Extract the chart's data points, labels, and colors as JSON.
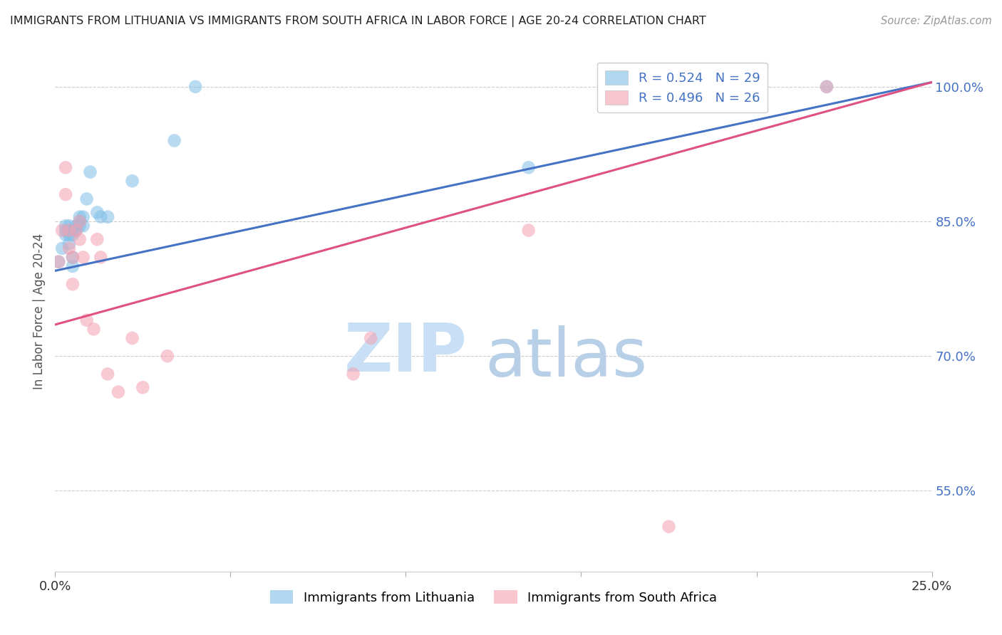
{
  "title": "IMMIGRANTS FROM LITHUANIA VS IMMIGRANTS FROM SOUTH AFRICA IN LABOR FORCE | AGE 20-24 CORRELATION CHART",
  "source": "Source: ZipAtlas.com",
  "ylabel": "In Labor Force | Age 20-24",
  "xlim": [
    0.0,
    0.25
  ],
  "ylim": [
    0.46,
    1.04
  ],
  "yticks": [
    0.55,
    0.7,
    0.85,
    1.0
  ],
  "ytick_labels": [
    "55.0%",
    "70.0%",
    "85.0%",
    "100.0%"
  ],
  "xticks": [
    0.0,
    0.05,
    0.1,
    0.15,
    0.2,
    0.25
  ],
  "watermark_zip": "ZIP",
  "watermark_atlas": "atlas",
  "watermark_zip_color": "#c8dff5",
  "watermark_atlas_color": "#b8cfe8",
  "blue_color": "#7fbfe8",
  "pink_color": "#f4a0b0",
  "blue_line_color": "#4472c4",
  "pink_line_color": "#e05080",
  "title_color": "#222222",
  "axis_label_color": "#555555",
  "right_tick_color": "#4472c4",
  "grid_color": "#cccccc",
  "legend_r1": "R = 0.524",
  "legend_n1": "N = 29",
  "legend_r2": "R = 0.496",
  "legend_n2": "N = 26",
  "legend_r1_color": "#4472c4",
  "legend_n1_color": "#e05080",
  "legend_r2_color": "#4472c4",
  "legend_n2_color": "#e05080",
  "blue_regression": [
    0.795,
    1.005
  ],
  "pink_regression": [
    0.735,
    1.005
  ],
  "lithuania_x": [
    0.001,
    0.002,
    0.003,
    0.003,
    0.003,
    0.004,
    0.004,
    0.004,
    0.005,
    0.005,
    0.005,
    0.005,
    0.006,
    0.006,
    0.007,
    0.007,
    0.007,
    0.008,
    0.008,
    0.009,
    0.01,
    0.012,
    0.013,
    0.015,
    0.022,
    0.034,
    0.04,
    0.135,
    0.22
  ],
  "lithuania_y": [
    0.805,
    0.82,
    0.84,
    0.845,
    0.835,
    0.825,
    0.835,
    0.845,
    0.835,
    0.84,
    0.8,
    0.81,
    0.84,
    0.845,
    0.85,
    0.855,
    0.845,
    0.855,
    0.845,
    0.875,
    0.905,
    0.86,
    0.855,
    0.855,
    0.895,
    0.94,
    1.0,
    0.91,
    1.0
  ],
  "southafrica_x": [
    0.001,
    0.002,
    0.003,
    0.003,
    0.004,
    0.004,
    0.005,
    0.005,
    0.006,
    0.007,
    0.007,
    0.008,
    0.009,
    0.011,
    0.012,
    0.013,
    0.015,
    0.018,
    0.022,
    0.025,
    0.032,
    0.085,
    0.09,
    0.135,
    0.175,
    0.22
  ],
  "southafrica_y": [
    0.805,
    0.84,
    0.91,
    0.88,
    0.82,
    0.84,
    0.81,
    0.78,
    0.84,
    0.83,
    0.85,
    0.81,
    0.74,
    0.73,
    0.83,
    0.81,
    0.68,
    0.66,
    0.72,
    0.665,
    0.7,
    0.68,
    0.72,
    0.84,
    0.51,
    1.0
  ]
}
